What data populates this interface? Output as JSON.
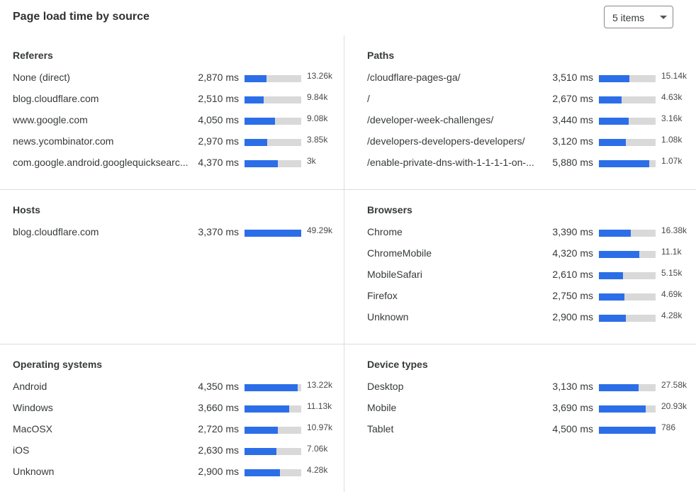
{
  "header": {
    "title": "Page load time by source",
    "dropdown": {
      "value": "5 items",
      "icon": "caret-down-icon"
    }
  },
  "colors": {
    "bar_fill": "#2c6ee8",
    "bar_track": "#d9d9d9"
  },
  "panels": [
    {
      "title": "Referers",
      "rows": [
        {
          "label": "None (direct)",
          "ms": "2,870 ms",
          "fill": 0.39,
          "count": "13.26k"
        },
        {
          "label": "blog.cloudflare.com",
          "ms": "2,510 ms",
          "fill": 0.34,
          "count": "9.84k"
        },
        {
          "label": "www.google.com",
          "ms": "4,050 ms",
          "fill": 0.54,
          "count": "9.08k"
        },
        {
          "label": "news.ycombinator.com",
          "ms": "2,970 ms",
          "fill": 0.4,
          "count": "3.85k"
        },
        {
          "label": "com.google.android.googlequicksearc...",
          "ms": "4,370 ms",
          "fill": 0.59,
          "count": "3k"
        }
      ]
    },
    {
      "title": "Paths",
      "rows": [
        {
          "label": "/cloudflare-pages-ga/",
          "ms": "3,510 ms",
          "fill": 0.54,
          "count": "15.14k"
        },
        {
          "label": "/",
          "ms": "2,670 ms",
          "fill": 0.4,
          "count": "4.63k"
        },
        {
          "label": "/developer-week-challenges/",
          "ms": "3,440 ms",
          "fill": 0.52,
          "count": "3.16k"
        },
        {
          "label": "/developers-developers-developers/",
          "ms": "3,120 ms",
          "fill": 0.48,
          "count": "1.08k"
        },
        {
          "label": "/enable-private-dns-with-1-1-1-1-on-...",
          "ms": "5,880 ms",
          "fill": 0.89,
          "count": "1.07k"
        }
      ]
    },
    {
      "title": "Hosts",
      "rows": [
        {
          "label": "blog.cloudflare.com",
          "ms": "3,370 ms",
          "fill": 1.0,
          "count": "49.29k"
        }
      ]
    },
    {
      "title": "Browsers",
      "rows": [
        {
          "label": "Chrome",
          "ms": "3,390 ms",
          "fill": 0.56,
          "count": "16.38k"
        },
        {
          "label": "ChromeMobile",
          "ms": "4,320 ms",
          "fill": 0.71,
          "count": "11.1k"
        },
        {
          "label": "MobileSafari",
          "ms": "2,610 ms",
          "fill": 0.43,
          "count": "5.15k"
        },
        {
          "label": "Firefox",
          "ms": "2,750 ms",
          "fill": 0.45,
          "count": "4.69k"
        },
        {
          "label": "Unknown",
          "ms": "2,900 ms",
          "fill": 0.48,
          "count": "4.28k"
        }
      ]
    },
    {
      "title": "Operating systems",
      "rows": [
        {
          "label": "Android",
          "ms": "4,350 ms",
          "fill": 0.94,
          "count": "13.22k"
        },
        {
          "label": "Windows",
          "ms": "3,660 ms",
          "fill": 0.79,
          "count": "11.13k"
        },
        {
          "label": "MacOSX",
          "ms": "2,720 ms",
          "fill": 0.59,
          "count": "10.97k"
        },
        {
          "label": "iOS",
          "ms": "2,630 ms",
          "fill": 0.56,
          "count": "7.06k"
        },
        {
          "label": "Unknown",
          "ms": "2,900 ms",
          "fill": 0.63,
          "count": "4.28k"
        }
      ]
    },
    {
      "title": "Device types",
      "rows": [
        {
          "label": "Desktop",
          "ms": "3,130 ms",
          "fill": 0.7,
          "count": "27.58k"
        },
        {
          "label": "Mobile",
          "ms": "3,690 ms",
          "fill": 0.83,
          "count": "20.93k"
        },
        {
          "label": "Tablet",
          "ms": "4,500 ms",
          "fill": 1.0,
          "count": "786"
        }
      ]
    }
  ]
}
